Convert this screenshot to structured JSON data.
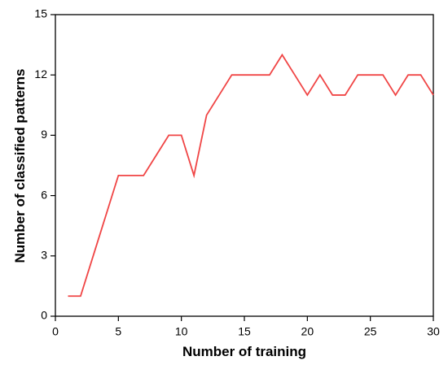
{
  "chart_data": {
    "type": "line",
    "x_label": "Number of training",
    "y_label": "Number of classified patterns",
    "x": [
      1,
      2,
      3,
      4,
      5,
      6,
      7,
      8,
      9,
      10,
      11,
      12,
      13,
      14,
      15,
      16,
      17,
      18,
      19,
      20,
      21,
      22,
      23,
      24,
      25,
      26,
      27,
      28,
      29,
      30
    ],
    "series": [
      {
        "color": "#f04545",
        "values": [
          1,
          1,
          3,
          5,
          7,
          7,
          7,
          8,
          9,
          9,
          7,
          10,
          11,
          12,
          12,
          12,
          12,
          13,
          12,
          11,
          12,
          11,
          11,
          12,
          12,
          12,
          11,
          12,
          12,
          11
        ]
      }
    ],
    "xlim": [
      0,
      30
    ],
    "xticks": [
      0,
      5,
      10,
      15,
      20,
      25,
      30
    ],
    "ylim": [
      0,
      15
    ],
    "yticks": [
      0,
      3,
      6,
      9,
      12,
      15
    ]
  }
}
